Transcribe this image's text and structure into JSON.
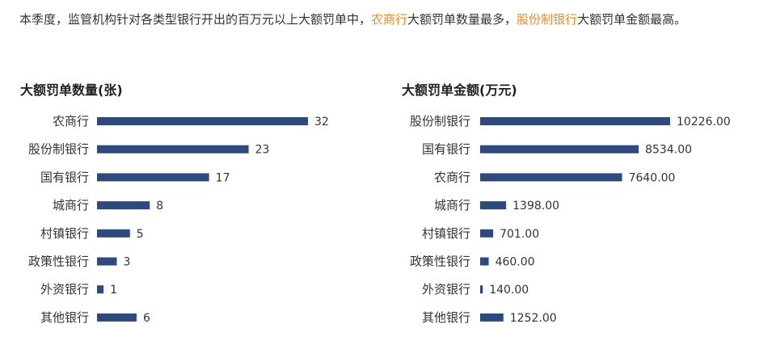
{
  "intro": {
    "part1": "本季度，监管机构针对各类型银行开出的百万元以上大额罚单中，",
    "highlight1": "农商行",
    "part2": "大额罚单数量最多，",
    "highlight2": "股份制银行",
    "part3": "大额罚单金额最高。"
  },
  "colors": {
    "bar": "#2e4a7d",
    "highlight": "#f08a24",
    "text": "#333333"
  },
  "chart_data": [
    {
      "type": "bar",
      "orientation": "horizontal",
      "title": "大额罚单数量(张)",
      "categories": [
        "农商行",
        "股份制银行",
        "国有银行",
        "城商行",
        "村镇银行",
        "政策性银行",
        "外资银行",
        "其他银行"
      ],
      "values": [
        32,
        23,
        17,
        8,
        5,
        3,
        1,
        6
      ],
      "value_labels": [
        "32",
        "23",
        "17",
        "8",
        "5",
        "3",
        "1",
        "6"
      ],
      "xlim": [
        0,
        32
      ],
      "grid": false,
      "legend": "none"
    },
    {
      "type": "bar",
      "orientation": "horizontal",
      "title": "大额罚单金额(万元)",
      "categories": [
        "股份制银行",
        "国有银行",
        "农商行",
        "城商行",
        "村镇银行",
        "政策性银行",
        "外资银行",
        "其他银行"
      ],
      "values": [
        10226.0,
        8534.0,
        7640.0,
        1398.0,
        701.0,
        460.0,
        140.0,
        1252.0
      ],
      "value_labels": [
        "10226.00",
        "8534.00",
        "7640.00",
        "1398.00",
        "701.00",
        "460.00",
        "140.00",
        "1252.00"
      ],
      "xlim": [
        0,
        10226
      ],
      "grid": false,
      "legend": "none"
    }
  ]
}
